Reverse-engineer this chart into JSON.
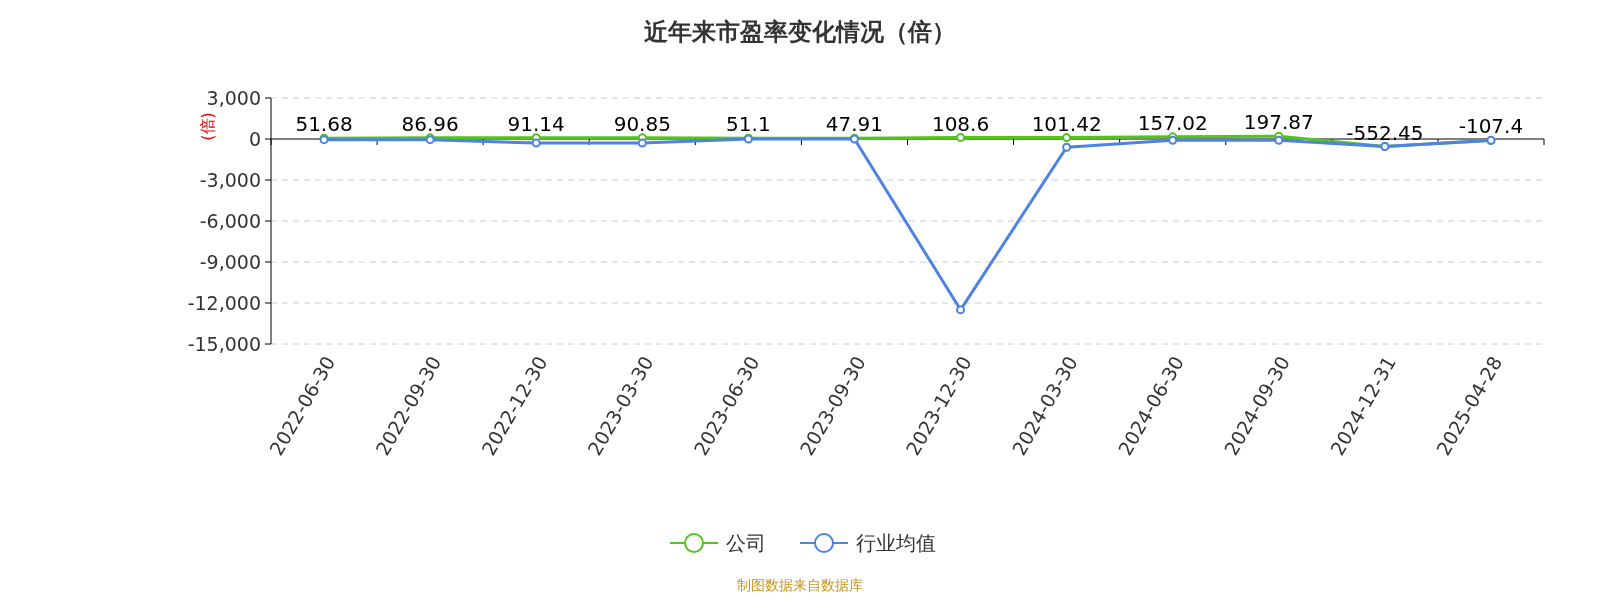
{
  "chart_data": {
    "type": "line",
    "title": "近年来市盈率变化情况（倍）",
    "ylabel": "(倍)",
    "categories": [
      "2022-06-30",
      "2022-09-30",
      "2022-12-30",
      "2023-03-30",
      "2023-06-30",
      "2023-09-30",
      "2023-12-30",
      "2024-03-30",
      "2024-06-30",
      "2024-09-30",
      "2024-12-31",
      "2025-04-28"
    ],
    "series": [
      {
        "name": "公司",
        "color": "#52c41a",
        "values": [
          51.68,
          86.96,
          91.14,
          90.85,
          51.1,
          47.91,
          108.6,
          101.42,
          157.02,
          197.87,
          -552.45,
          -107.4
        ],
        "value_labels": [
          "51.68",
          "86.96",
          "91.14",
          "90.85",
          "51.1",
          "47.91",
          "108.6",
          "101.42",
          "157.02",
          "197.87",
          "-552.45",
          "-107.4"
        ]
      },
      {
        "name": "行业均值",
        "color": "#4e83e3",
        "values": [
          -50,
          -50,
          -300,
          -300,
          0,
          0,
          -12500,
          -600,
          -100,
          -100,
          -550,
          -100
        ]
      }
    ],
    "ylim": [
      -15000,
      3000
    ],
    "yticks": [
      {
        "value": 3000,
        "label": "3,000"
      },
      0,
      {
        "value": -3000,
        "label": "-3,000"
      },
      {
        "value": -6000,
        "label": "-6,000"
      },
      {
        "value": -9000,
        "label": "-9,000"
      },
      {
        "value": -12000,
        "label": "-12,000"
      },
      {
        "value": -15000,
        "label": "-15,000"
      }
    ],
    "grid": "y",
    "legend": "bottom",
    "marker": "circle",
    "line_style": "solid",
    "annotations": [
      "制图数据来自数据库"
    ]
  }
}
